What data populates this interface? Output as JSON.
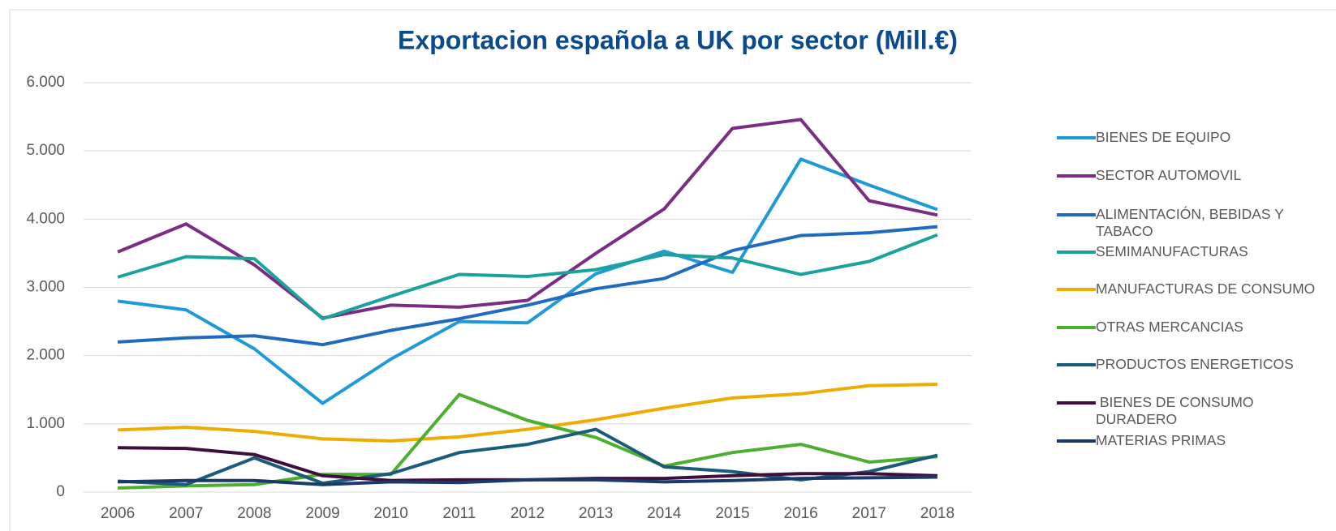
{
  "chart_data": {
    "type": "line",
    "title": "Exportacion española a UK por sector (Mill.€)",
    "categories": [
      "2006",
      "2007",
      "2008",
      "2009",
      "2010",
      "2011",
      "2012",
      "2013",
      "2014",
      "2015",
      "2016",
      "2017",
      "2018"
    ],
    "ylim": [
      0,
      6000
    ],
    "yticks": [
      0,
      {
        "value": 1000,
        "label": "1.000"
      },
      {
        "value": 2000,
        "label": "2.000"
      },
      {
        "value": 3000,
        "label": "3.000"
      },
      {
        "value": 4000,
        "label": "4.000"
      },
      {
        "value": 5000,
        "label": "5.000"
      },
      {
        "value": 6000,
        "label": "6.000"
      }
    ],
    "grid": true,
    "legend": "right",
    "series": [
      {
        "name": "BIENES DE EQUIPO",
        "color": "#1e9ad6",
        "values": [
          2800,
          2670,
          2100,
          1300,
          1950,
          2500,
          2480,
          3200,
          3530,
          3220,
          4880,
          4500,
          4140
        ]
      },
      {
        "name": "SECTOR AUTOMOVIL",
        "color": "#7b2c83",
        "values": [
          3520,
          3930,
          3330,
          2550,
          2740,
          2710,
          2810,
          3500,
          4150,
          5330,
          5460,
          4270,
          4060
        ]
      },
      {
        "name": "ALIMENTACIÓN, BEBIDAS Y TABACO",
        "color": "#1f6bbf",
        "values": [
          2200,
          2260,
          2290,
          2160,
          2370,
          2540,
          2740,
          2980,
          3130,
          3540,
          3760,
          3800,
          3890
        ]
      },
      {
        "name": "SEMIMANUFACTURAS",
        "color": "#1aa39c",
        "values": [
          3150,
          3450,
          3420,
          2540,
          2870,
          3190,
          3160,
          3260,
          3480,
          3430,
          3190,
          3380,
          3770
        ]
      },
      {
        "name": "MANUFACTURAS DE CONSUMO",
        "color": "#f0ab00",
        "values": [
          910,
          950,
          890,
          780,
          750,
          810,
          920,
          1060,
          1230,
          1380,
          1440,
          1560,
          1580
        ]
      },
      {
        "name": "OTRAS MERCANCIAS",
        "color": "#4caf30",
        "values": [
          60,
          90,
          110,
          260,
          260,
          1430,
          1050,
          800,
          380,
          580,
          700,
          440,
          520
        ]
      },
      {
        "name": "PRODUCTOS ENERGETICOS",
        "color": "#1a5c7a",
        "values": [
          160,
          110,
          500,
          130,
          270,
          580,
          700,
          920,
          370,
          300,
          180,
          300,
          540
        ]
      },
      {
        "name": " BIENES DE CONSUMO DURADERO",
        "color": "#3d0f3d",
        "values": [
          650,
          640,
          550,
          240,
          170,
          180,
          180,
          200,
          200,
          240,
          270,
          270,
          240
        ]
      },
      {
        "name": "MATERIAS PRIMAS",
        "color": "#1b3a6b",
        "values": [
          150,
          170,
          170,
          110,
          150,
          140,
          180,
          180,
          150,
          170,
          200,
          210,
          220
        ]
      }
    ]
  }
}
